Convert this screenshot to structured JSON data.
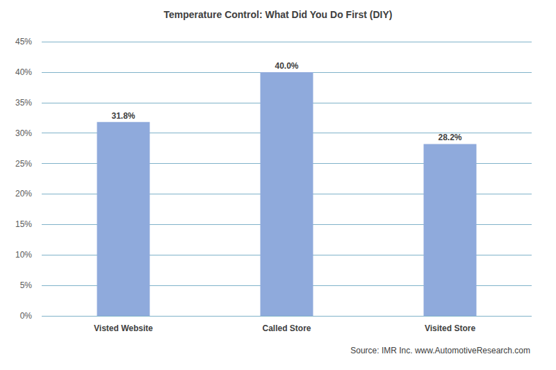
{
  "chart_data": {
    "type": "bar",
    "title": "Temperature Control: What Did You Do First (DIY)",
    "categories": [
      "Visted Website",
      "Called Store",
      "Visited Store"
    ],
    "values": [
      31.8,
      40.0,
      28.2
    ],
    "value_labels": [
      "31.8%",
      "40.0%",
      "28.2%"
    ],
    "color": "#8faadc",
    "ylim": [
      0,
      45
    ],
    "yticks": [
      {
        "value": 0,
        "label": "0%"
      },
      {
        "value": 5,
        "label": "5%"
      },
      {
        "value": 10,
        "label": "10%"
      },
      {
        "value": 15,
        "label": "15%"
      },
      {
        "value": 20,
        "label": "20%"
      },
      {
        "value": 25,
        "label": "25%"
      },
      {
        "value": 30,
        "label": "30%"
      },
      {
        "value": 35,
        "label": "35%"
      },
      {
        "value": 40,
        "label": "40%"
      },
      {
        "value": 45,
        "label": "45%"
      }
    ],
    "grid": true,
    "data_labels": true,
    "annotations": [
      "Source: IMR Inc. www.AutomotiveResearch.com"
    ]
  }
}
